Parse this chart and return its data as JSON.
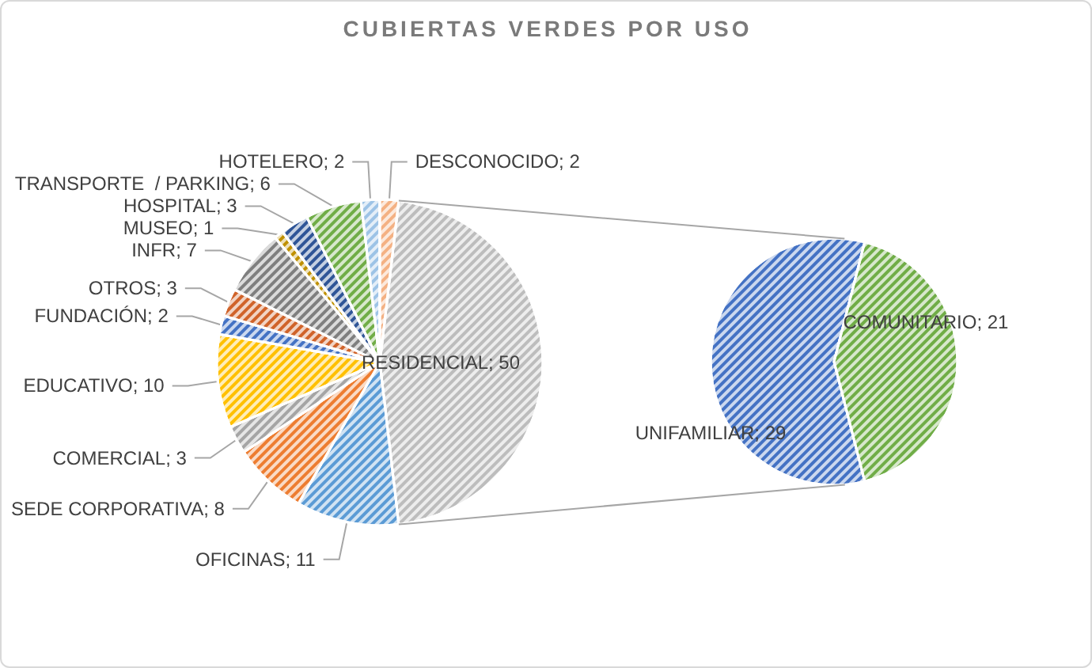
{
  "chart_data": [
    {
      "type": "pie",
      "title": "CUBIERTAS VERDES POR USO",
      "categories": [
        "RESIDENCIAL",
        "OFICINAS",
        "SEDE CORPORATIVA",
        "COMERCIAL",
        "EDUCATIVO",
        "FUNDACIÓN",
        "OTROS",
        "INFR",
        "MUSEO",
        "HOSPITAL",
        "TRANSPORTE  / PARKING",
        "HOTELERO",
        "DESCONOCIDO"
      ],
      "values": [
        50,
        11,
        8,
        3,
        10,
        2,
        3,
        7,
        1,
        3,
        6,
        2,
        2
      ],
      "value_labels": [
        "; 50",
        "; 11",
        "; 8",
        "; 3",
        "; 10",
        "; 2",
        "; 3",
        "; 7",
        "; 1",
        "; 3",
        "; 6",
        "; 2",
        "; 2"
      ],
      "colors": [
        "#bdbdbd",
        "#5b9bd5",
        "#ed7d31",
        "#a5a5a5",
        "#ffc000",
        "#4472c4",
        "#d0632a",
        "#7f7f7f",
        "#bf9000",
        "#2f5597",
        "#70ad47",
        "#9dc3e6",
        "#f4b183"
      ]
    },
    {
      "type": "pie",
      "categories": [
        "UNIFAMILIAR",
        "COMUNITARIO"
      ],
      "values": [
        29,
        21
      ],
      "value_labels": [
        "; 29",
        "; 21"
      ],
      "colors": [
        "#4472c4",
        "#70ad47"
      ]
    }
  ]
}
